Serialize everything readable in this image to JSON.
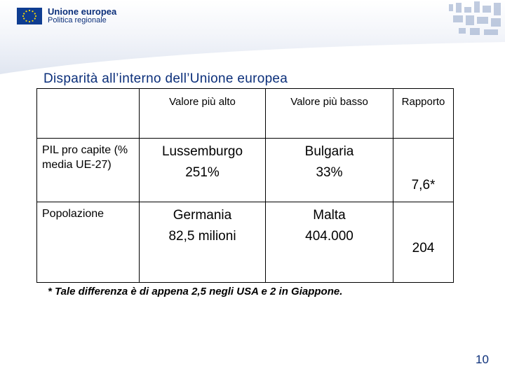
{
  "header": {
    "logo_title": "Unione europea",
    "logo_subtitle": "Politica regionale",
    "brand_color": "#0b2f7a",
    "flag_icon": "eu-flag-icon"
  },
  "title": "Disparità all’interno dell’Unione europea",
  "table": {
    "columns": [
      "",
      "Valore più alto",
      "Valore più basso",
      "Rapporto"
    ],
    "rows": [
      {
        "label": "PIL pro capite (% media UE-27)",
        "high_name": "Lussemburgo",
        "high_value": "251%",
        "low_name": "Bulgaria",
        "low_value": "33%",
        "ratio": "7,6*"
      },
      {
        "label": "Popolazione",
        "high_name": "Germania",
        "high_value": "82,5 milioni",
        "low_name": "Malta",
        "low_value": "404.000",
        "ratio": "204"
      }
    ]
  },
  "footnote": "* Tale differenza è di appena 2,5 negli USA e 2 in Giappone.",
  "page_number": "10"
}
